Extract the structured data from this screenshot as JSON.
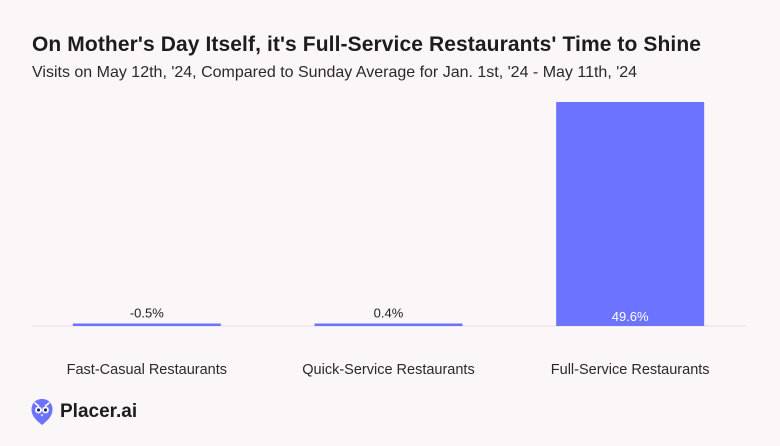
{
  "chart_data": {
    "type": "bar",
    "title": "On Mother's Day Itself, it's Full-Service Restaurants' Time to Shine",
    "subtitle": "Visits on May 12th, '24, Compared to Sunday Average for Jan. 1st, '24 - May 11th, '24",
    "categories": [
      "Fast-Casual Restaurants",
      "Quick-Service Restaurants",
      "Full-Service Restaurants"
    ],
    "values": [
      -0.5,
      0.4,
      49.6
    ],
    "value_labels": [
      "-0.5%",
      "0.4%",
      "49.6%"
    ],
    "xlabel": "",
    "ylabel": "",
    "ylim": [
      -0.5,
      49.6
    ],
    "grid": false,
    "legend": "none"
  },
  "colors": {
    "bar": "#6c74ff",
    "baseline": "#e6dfe1",
    "background": "#fbf6f7"
  },
  "brand": {
    "logo_text": "Placer.ai",
    "logo_icon": "placer-owl-icon"
  }
}
